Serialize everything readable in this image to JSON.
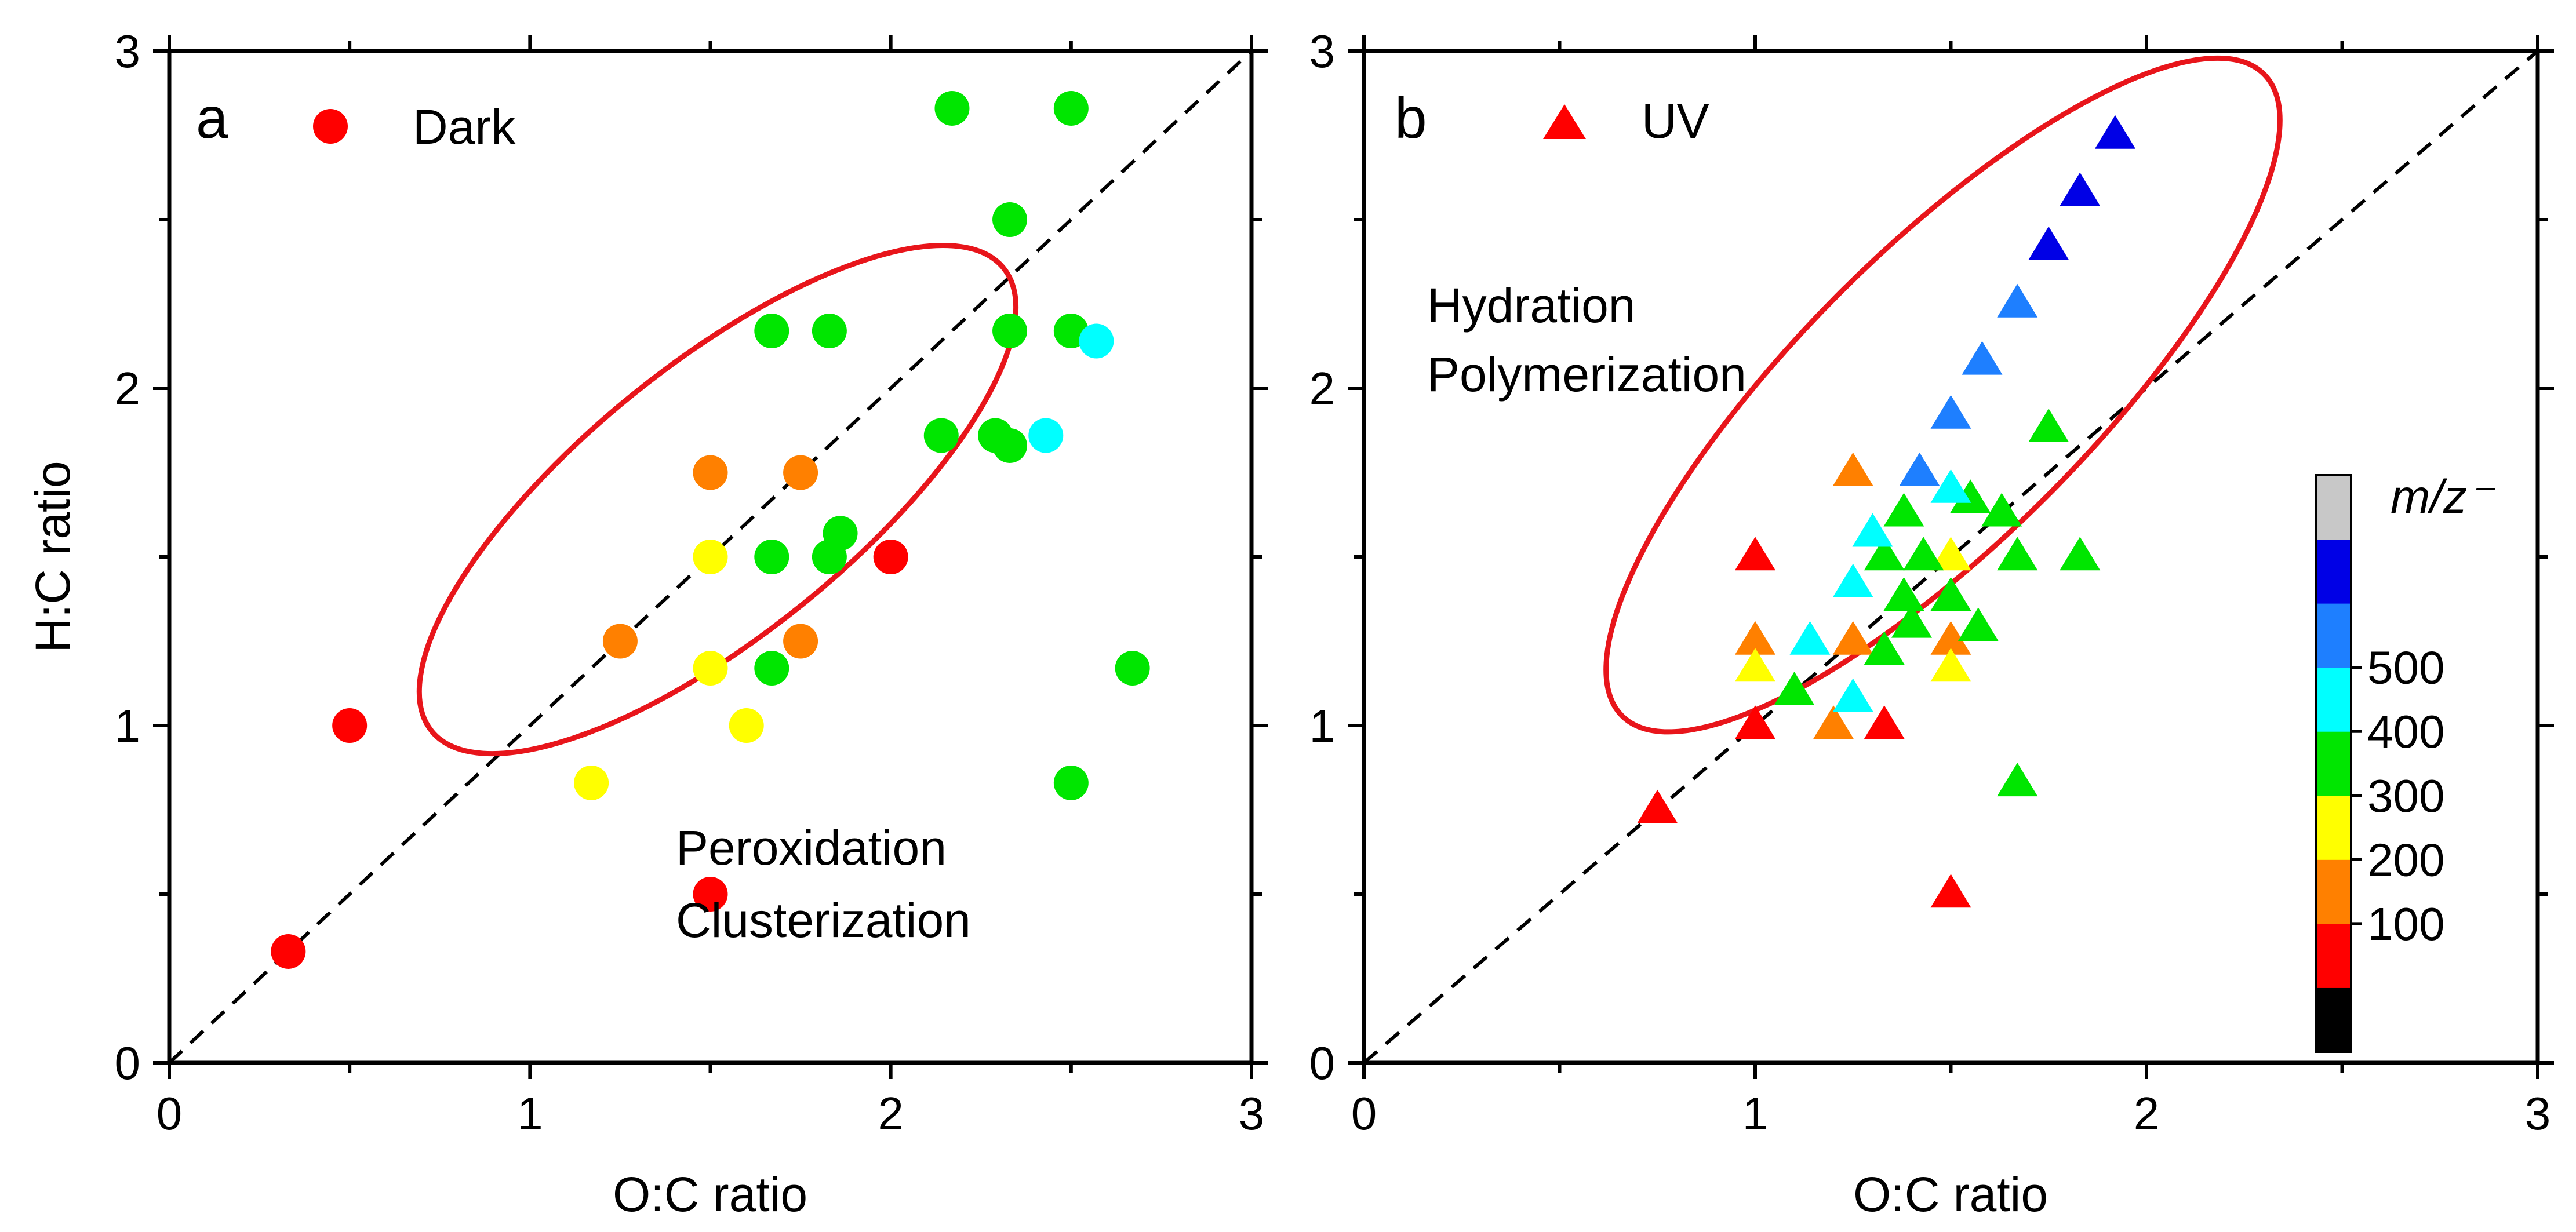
{
  "colors": {
    "black": "#000000",
    "dark_red": "#ff0000",
    "orange": "#ff8000",
    "yellow": "#ffff00",
    "green": "#00e600",
    "cyan": "#00ffff",
    "azure": "#1e7fff",
    "blue": "#0000e6",
    "gray": "#c8c8c8",
    "ellipse": "#e8151b"
  },
  "chart_data": [
    {
      "type": "scatter",
      "panel": "a",
      "marker": "circle",
      "xlabel": "O:C ratio",
      "ylabel": "H:C ratio",
      "xlim": [
        0,
        3
      ],
      "ylim": [
        0,
        3
      ],
      "xticks": [
        "0",
        "1",
        "2",
        "3"
      ],
      "yticks": [
        "0",
        "1",
        "2",
        "3"
      ],
      "legend": {
        "label": "Dark",
        "color": "#ff0000",
        "placement": "top-left"
      },
      "annotation": [
        "Peroxidation",
        "Clusterization"
      ],
      "ellipse": {
        "cx": 1.52,
        "cy": 1.67,
        "rx": 1.02,
        "ry": 0.4,
        "angle_deg": -39
      },
      "diagonal": {
        "from": [
          0,
          0
        ],
        "to": [
          3,
          3
        ],
        "style": "dashed"
      },
      "points": [
        {
          "x": 0.33,
          "y": 0.33,
          "color": "#ff0000"
        },
        {
          "x": 0.5,
          "y": 1.0,
          "color": "#ff0000"
        },
        {
          "x": 1.5,
          "y": 0.5,
          "color": "#ff0000"
        },
        {
          "x": 2.0,
          "y": 1.5,
          "color": "#ff0000"
        },
        {
          "x": 1.25,
          "y": 1.25,
          "color": "#ff8000"
        },
        {
          "x": 1.5,
          "y": 1.75,
          "color": "#ff8000"
        },
        {
          "x": 1.75,
          "y": 1.75,
          "color": "#ff8000"
        },
        {
          "x": 1.75,
          "y": 1.25,
          "color": "#ff8000"
        },
        {
          "x": 1.17,
          "y": 0.83,
          "color": "#ffff00"
        },
        {
          "x": 1.5,
          "y": 1.5,
          "color": "#ffff00"
        },
        {
          "x": 1.5,
          "y": 1.17,
          "color": "#ffff00"
        },
        {
          "x": 1.6,
          "y": 1.0,
          "color": "#ffff00"
        },
        {
          "x": 1.67,
          "y": 1.5,
          "color": "#00e600"
        },
        {
          "x": 1.67,
          "y": 1.17,
          "color": "#00e600"
        },
        {
          "x": 1.67,
          "y": 2.17,
          "color": "#00e600"
        },
        {
          "x": 1.83,
          "y": 2.17,
          "color": "#00e600"
        },
        {
          "x": 1.83,
          "y": 1.5,
          "color": "#00e600"
        },
        {
          "x": 1.86,
          "y": 1.57,
          "color": "#00e600"
        },
        {
          "x": 2.14,
          "y": 1.86,
          "color": "#00e600"
        },
        {
          "x": 2.17,
          "y": 2.83,
          "color": "#00e600"
        },
        {
          "x": 2.29,
          "y": 1.86,
          "color": "#00e600"
        },
        {
          "x": 2.33,
          "y": 1.83,
          "color": "#00e600"
        },
        {
          "x": 2.33,
          "y": 2.17,
          "color": "#00e600"
        },
        {
          "x": 2.33,
          "y": 2.5,
          "color": "#00e600"
        },
        {
          "x": 2.5,
          "y": 2.83,
          "color": "#00e600"
        },
        {
          "x": 2.5,
          "y": 2.17,
          "color": "#00e600"
        },
        {
          "x": 2.5,
          "y": 0.83,
          "color": "#00e600"
        },
        {
          "x": 2.67,
          "y": 1.17,
          "color": "#00e600"
        },
        {
          "x": 2.43,
          "y": 1.86,
          "color": "#00ffff"
        },
        {
          "x": 2.57,
          "y": 2.14,
          "color": "#00ffff"
        }
      ]
    },
    {
      "type": "scatter",
      "panel": "b",
      "marker": "triangle",
      "xlabel": "O:C ratio",
      "ylabel": "",
      "xlim": [
        0,
        3
      ],
      "ylim": [
        0,
        3
      ],
      "xticks": [
        "0",
        "1",
        "2",
        "3"
      ],
      "yticks": [
        "0",
        "1",
        "2",
        "3"
      ],
      "legend": {
        "label": "UV",
        "color": "#ff0000",
        "placement": "top-left"
      },
      "annotation": [
        "Hydration",
        "Polymerization"
      ],
      "ellipse": {
        "cx": 1.48,
        "cy": 1.98,
        "rx": 1.16,
        "ry": 0.43,
        "angle_deg": -45
      },
      "diagonal": {
        "from": [
          0,
          0
        ],
        "to": [
          3,
          3
        ],
        "style": "dashed"
      },
      "points": [
        {
          "x": 0.75,
          "y": 0.75,
          "color": "#ff0000"
        },
        {
          "x": 1.0,
          "y": 1.0,
          "color": "#ff0000"
        },
        {
          "x": 1.0,
          "y": 1.5,
          "color": "#ff0000"
        },
        {
          "x": 1.33,
          "y": 1.0,
          "color": "#ff0000"
        },
        {
          "x": 1.5,
          "y": 0.5,
          "color": "#ff0000"
        },
        {
          "x": 1.0,
          "y": 1.25,
          "color": "#ff8000"
        },
        {
          "x": 1.2,
          "y": 1.0,
          "color": "#ff8000"
        },
        {
          "x": 1.25,
          "y": 1.75,
          "color": "#ff8000"
        },
        {
          "x": 1.25,
          "y": 1.25,
          "color": "#ff8000"
        },
        {
          "x": 1.5,
          "y": 1.25,
          "color": "#ff8000"
        },
        {
          "x": 1.0,
          "y": 1.17,
          "color": "#ffff00"
        },
        {
          "x": 1.5,
          "y": 1.17,
          "color": "#ffff00"
        },
        {
          "x": 1.5,
          "y": 1.5,
          "color": "#ffff00"
        },
        {
          "x": 1.1,
          "y": 1.1,
          "color": "#00e600"
        },
        {
          "x": 1.33,
          "y": 1.5,
          "color": "#00e600"
        },
        {
          "x": 1.33,
          "y": 1.22,
          "color": "#00e600"
        },
        {
          "x": 1.38,
          "y": 1.38,
          "color": "#00e600"
        },
        {
          "x": 1.38,
          "y": 1.63,
          "color": "#00e600"
        },
        {
          "x": 1.4,
          "y": 1.3,
          "color": "#00e600"
        },
        {
          "x": 1.43,
          "y": 1.5,
          "color": "#00e600"
        },
        {
          "x": 1.5,
          "y": 1.38,
          "color": "#00e600"
        },
        {
          "x": 1.55,
          "y": 1.67,
          "color": "#00e600"
        },
        {
          "x": 1.57,
          "y": 1.29,
          "color": "#00e600"
        },
        {
          "x": 1.63,
          "y": 1.63,
          "color": "#00e600"
        },
        {
          "x": 1.67,
          "y": 1.5,
          "color": "#00e600"
        },
        {
          "x": 1.67,
          "y": 0.83,
          "color": "#00e600"
        },
        {
          "x": 1.75,
          "y": 1.88,
          "color": "#00e600"
        },
        {
          "x": 1.83,
          "y": 1.5,
          "color": "#00e600"
        },
        {
          "x": 1.14,
          "y": 1.25,
          "color": "#00ffff"
        },
        {
          "x": 1.25,
          "y": 1.08,
          "color": "#00ffff"
        },
        {
          "x": 1.25,
          "y": 1.42,
          "color": "#00ffff"
        },
        {
          "x": 1.3,
          "y": 1.57,
          "color": "#00ffff"
        },
        {
          "x": 1.5,
          "y": 1.7,
          "color": "#00ffff"
        },
        {
          "x": 1.42,
          "y": 1.75,
          "color": "#1e7fff"
        },
        {
          "x": 1.5,
          "y": 1.92,
          "color": "#1e7fff"
        },
        {
          "x": 1.58,
          "y": 2.08,
          "color": "#1e7fff"
        },
        {
          "x": 1.67,
          "y": 2.25,
          "color": "#1e7fff"
        },
        {
          "x": 1.75,
          "y": 2.42,
          "color": "#0000e6"
        },
        {
          "x": 1.83,
          "y": 2.58,
          "color": "#0000e6"
        },
        {
          "x": 1.92,
          "y": 2.75,
          "color": "#0000e6"
        }
      ],
      "colorbar": {
        "title": "m/z⁻",
        "labels": [
          "100",
          "200",
          "300",
          "400",
          "500"
        ],
        "colors": [
          "#000000",
          "#ff0000",
          "#ff8000",
          "#ffff00",
          "#00e600",
          "#00ffff",
          "#1e7fff",
          "#0000e6",
          "#c8c8c8"
        ]
      }
    }
  ]
}
